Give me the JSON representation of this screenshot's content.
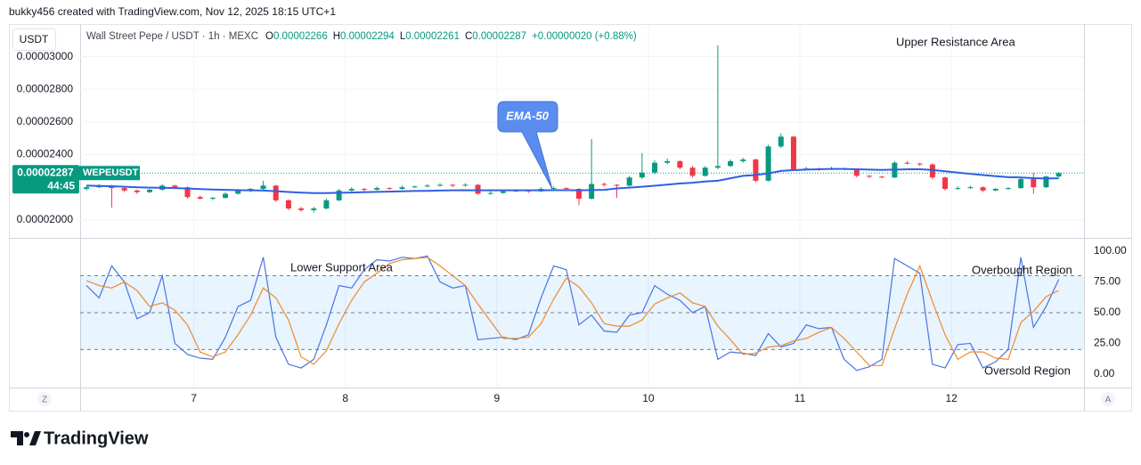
{
  "header": {
    "attribution": "bukky456 created with TradingView.com, Nov 12, 2025 18:15 UTC+1",
    "logo": "TradingView"
  },
  "controls": {
    "left": "Z",
    "right": "A"
  },
  "chart_data": [
    {
      "type": "candlestick",
      "title": "Wall Street Pepe / USDT · 1h · MEXC",
      "currency": "USDT",
      "symbol": "WEPEUSDT",
      "countdown": "44:45",
      "legend_labels": [
        "O",
        "H",
        "L",
        "C"
      ],
      "change": "+0.00000020 (+0.88%)",
      "up_color": "#089981",
      "down_color": "#f23645",
      "xlim": [
        0,
        159
      ],
      "xticks": [
        {
          "value": 18,
          "label": "7"
        },
        {
          "value": 42,
          "label": "8"
        },
        {
          "value": 66,
          "label": "9"
        },
        {
          "value": 90,
          "label": "10"
        },
        {
          "value": 114,
          "label": "11"
        },
        {
          "value": 138,
          "label": "12"
        }
      ],
      "ylim": [
        1.89e-05,
        3.2e-05
      ],
      "yticks": [
        {
          "value": 2e-05,
          "label": "0.00002000"
        },
        {
          "value": 2.4e-05,
          "label": "0.00002400"
        },
        {
          "value": 2.6e-05,
          "label": "0.00002600"
        },
        {
          "value": 2.8e-05,
          "label": "0.00002800"
        },
        {
          "value": 3e-05,
          "label": "0.00003000"
        }
      ],
      "grid": true,
      "x": [
        1,
        3,
        5,
        7,
        9,
        11,
        13,
        15,
        17,
        19,
        21,
        23,
        25,
        27,
        29,
        31,
        33,
        35,
        37,
        39,
        41,
        43,
        45,
        47,
        49,
        51,
        53,
        55,
        57,
        59,
        61,
        63,
        65,
        67,
        69,
        71,
        73,
        75,
        77,
        79,
        81,
        83,
        85,
        87,
        89,
        91,
        93,
        95,
        97,
        99,
        101,
        103,
        105,
        107,
        109,
        111,
        113,
        115,
        117,
        119,
        121,
        123,
        125,
        127,
        129,
        131,
        133,
        135,
        137,
        139,
        141,
        143,
        145,
        147,
        149,
        151,
        153,
        155
      ],
      "open": [
        2.19e-05,
        2.2e-05,
        2.21e-05,
        2.195e-05,
        2.18e-05,
        2.17e-05,
        2.185e-05,
        2.21e-05,
        2.2e-05,
        2.14e-05,
        2.13e-05,
        2.135e-05,
        2.16e-05,
        2.18e-05,
        2.19e-05,
        2.21e-05,
        2.12e-05,
        2.07e-05,
        2.06e-05,
        2.07e-05,
        2.12e-05,
        2.18e-05,
        2.19e-05,
        2.185e-05,
        2.195e-05,
        2.19e-05,
        2.2e-05,
        2.205e-05,
        2.21e-05,
        2.215e-05,
        2.21e-05,
        2.215e-05,
        2.16e-05,
        2.165e-05,
        2.175e-05,
        2.18e-05,
        2.175e-05,
        2.19e-05,
        2.195e-05,
        2.19e-05,
        2.13e-05,
        2.22e-05,
        2.215e-05,
        2.21e-05,
        2.26e-05,
        2.29e-05,
        2.35e-05,
        2.36e-05,
        2.32e-05,
        2.27e-05,
        2.32e-05,
        2.33e-05,
        2.36e-05,
        2.37e-05,
        2.24e-05,
        2.45e-05,
        2.51e-05,
        2.31e-05,
        2.315e-05,
        2.31e-05,
        2.315e-05,
        2.31e-05,
        2.27e-05,
        2.265e-05,
        2.26e-05,
        2.35e-05,
        2.345e-05,
        2.34e-05,
        2.26e-05,
        2.19e-05,
        2.195e-05,
        2.2e-05,
        2.18e-05,
        2.19e-05,
        2.195e-05,
        2.25e-05,
        2.2e-05,
        2.266e-05
      ],
      "high": [
        2.21e-05,
        2.22e-05,
        2.215e-05,
        2.2e-05,
        2.185e-05,
        2.19e-05,
        2.22e-05,
        2.215e-05,
        2.205e-05,
        2.15e-05,
        2.14e-05,
        2.17e-05,
        2.19e-05,
        2.195e-05,
        2.24e-05,
        2.215e-05,
        2.125e-05,
        2.08e-05,
        2.08e-05,
        2.13e-05,
        2.19e-05,
        2.2e-05,
        2.195e-05,
        2.205e-05,
        2.2e-05,
        2.21e-05,
        2.21e-05,
        2.22e-05,
        2.225e-05,
        2.22e-05,
        2.225e-05,
        2.22e-05,
        2.175e-05,
        2.18e-05,
        2.185e-05,
        2.185e-05,
        2.2e-05,
        2.205e-05,
        2.2e-05,
        2.195e-05,
        2.495e-05,
        2.23e-05,
        2.22e-05,
        2.27e-05,
        2.41e-05,
        2.365e-05,
        2.375e-05,
        2.365e-05,
        2.33e-05,
        2.33e-05,
        3.07e-05,
        2.37e-05,
        2.38e-05,
        2.375e-05,
        2.46e-05,
        2.53e-05,
        2.515e-05,
        2.325e-05,
        2.32e-05,
        2.325e-05,
        2.32e-05,
        2.315e-05,
        2.275e-05,
        2.27e-05,
        2.36e-05,
        2.36e-05,
        2.35e-05,
        2.345e-05,
        2.265e-05,
        2.205e-05,
        2.21e-05,
        2.205e-05,
        2.195e-05,
        2.2e-05,
        2.26e-05,
        2.29e-05,
        2.27e-05,
        2.294e-05
      ],
      "low": [
        2.18e-05,
        2.195e-05,
        2.075e-05,
        2.17e-05,
        2.16e-05,
        2.165e-05,
        2.18e-05,
        2.19e-05,
        2.13e-05,
        2.125e-05,
        2.12e-05,
        2.13e-05,
        2.155e-05,
        2.17e-05,
        2.185e-05,
        2.11e-05,
        2.06e-05,
        2.05e-05,
        2.045e-05,
        2.065e-05,
        2.115e-05,
        2.175e-05,
        2.175e-05,
        2.18e-05,
        2.185e-05,
        2.185e-05,
        2.195e-05,
        2.2e-05,
        2.205e-05,
        2.2e-05,
        2.205e-05,
        2.155e-05,
        2.155e-05,
        2.16e-05,
        2.17e-05,
        2.165e-05,
        2.17e-05,
        2.185e-05,
        2.185e-05,
        2.09e-05,
        2.125e-05,
        2.205e-05,
        2.135e-05,
        2.205e-05,
        2.25e-05,
        2.28e-05,
        2.34e-05,
        2.31e-05,
        2.26e-05,
        2.265e-05,
        2.31e-05,
        2.325e-05,
        2.35e-05,
        2.23e-05,
        2.235e-05,
        2.44e-05,
        2.3e-05,
        2.305e-05,
        2.3e-05,
        2.305e-05,
        2.305e-05,
        2.26e-05,
        2.255e-05,
        2.255e-05,
        2.255e-05,
        2.34e-05,
        2.33e-05,
        2.25e-05,
        2.18e-05,
        2.185e-05,
        2.19e-05,
        2.17e-05,
        2.175e-05,
        2.185e-05,
        2.19e-05,
        2.16e-05,
        2.195e-05,
        2.261e-05
      ],
      "close": [
        2.2e-05,
        2.21e-05,
        2.195e-05,
        2.18e-05,
        2.17e-05,
        2.185e-05,
        2.21e-05,
        2.2e-05,
        2.14e-05,
        2.13e-05,
        2.135e-05,
        2.16e-05,
        2.18e-05,
        2.19e-05,
        2.21e-05,
        2.12e-05,
        2.07e-05,
        2.06e-05,
        2.07e-05,
        2.12e-05,
        2.18e-05,
        2.19e-05,
        2.185e-05,
        2.195e-05,
        2.19e-05,
        2.2e-05,
        2.205e-05,
        2.21e-05,
        2.215e-05,
        2.21e-05,
        2.215e-05,
        2.16e-05,
        2.165e-05,
        2.175e-05,
        2.18e-05,
        2.175e-05,
        2.19e-05,
        2.195e-05,
        2.19e-05,
        2.13e-05,
        2.22e-05,
        2.215e-05,
        2.21e-05,
        2.26e-05,
        2.29e-05,
        2.35e-05,
        2.36e-05,
        2.32e-05,
        2.27e-05,
        2.32e-05,
        2.33e-05,
        2.36e-05,
        2.37e-05,
        2.24e-05,
        2.45e-05,
        2.51e-05,
        2.31e-05,
        2.315e-05,
        2.31e-05,
        2.315e-05,
        2.31e-05,
        2.27e-05,
        2.265e-05,
        2.26e-05,
        2.35e-05,
        2.345e-05,
        2.34e-05,
        2.26e-05,
        2.19e-05,
        2.195e-05,
        2.2e-05,
        2.18e-05,
        2.19e-05,
        2.195e-05,
        2.25e-05,
        2.2e-05,
        2.266e-05,
        2.287e-05
      ],
      "ema": {
        "color": "#2f5fe3",
        "values": [
          2.21e-05,
          2.208e-05,
          2.206e-05,
          2.203e-05,
          2.2e-05,
          2.198e-05,
          2.197e-05,
          2.195e-05,
          2.192e-05,
          2.189e-05,
          2.186e-05,
          2.184e-05,
          2.182e-05,
          2.181e-05,
          2.18e-05,
          2.176e-05,
          2.171e-05,
          2.167e-05,
          2.164e-05,
          2.164e-05,
          2.166e-05,
          2.168e-05,
          2.17e-05,
          2.172e-05,
          2.173e-05,
          2.175e-05,
          2.177e-05,
          2.178e-05,
          2.18e-05,
          2.181e-05,
          2.182e-05,
          2.181e-05,
          2.181e-05,
          2.181e-05,
          2.181e-05,
          2.181e-05,
          2.181e-05,
          2.182e-05,
          2.182e-05,
          2.181e-05,
          2.183e-05,
          2.184e-05,
          2.193e-05,
          2.198e-05,
          2.203e-05,
          2.209e-05,
          2.216e-05,
          2.223e-05,
          2.228e-05,
          2.235e-05,
          2.24e-05,
          2.255e-05,
          2.27e-05,
          2.275e-05,
          2.285e-05,
          2.3e-05,
          2.305e-05,
          2.308e-05,
          2.31e-05,
          2.312e-05,
          2.312e-05,
          2.31e-05,
          2.308e-05,
          2.306e-05,
          2.308e-05,
          2.31e-05,
          2.31e-05,
          2.306e-05,
          2.298e-05,
          2.29e-05,
          2.282e-05,
          2.275e-05,
          2.268e-05,
          2.262e-05,
          2.26e-05,
          2.256e-05,
          2.254e-05,
          2.255e-05
        ]
      },
      "annotations": [
        "Upper Resistance Area",
        "EMA-50"
      ]
    },
    {
      "type": "line",
      "ylim": [
        -10.9,
        110.1
      ],
      "yticks": [
        {
          "value": 0,
          "label": "0.00"
        },
        {
          "value": 25,
          "label": "25.00"
        },
        {
          "value": 50,
          "label": "50.00"
        },
        {
          "value": 75,
          "label": "75.00"
        },
        {
          "value": 100,
          "label": "100.00"
        }
      ],
      "bands": [
        20,
        50,
        80
      ],
      "band_color": "#2196f3",
      "series": [
        {
          "color": "#4a74e2",
          "values": [
            72,
            62,
            88,
            75,
            45,
            50,
            80,
            25,
            16,
            13,
            12,
            30,
            55,
            60,
            95,
            30,
            8,
            5,
            12,
            40,
            72,
            70,
            85,
            93,
            92,
            95,
            94,
            96,
            75,
            70,
            72,
            28,
            29,
            30,
            28,
            32,
            62,
            88,
            85,
            40,
            48,
            35,
            34,
            48,
            50,
            72,
            65,
            60,
            50,
            55,
            12,
            18,
            17,
            15,
            33,
            22,
            25,
            40,
            37,
            38,
            12,
            3,
            6,
            12,
            94,
            88,
            82,
            8,
            5,
            24,
            25,
            5,
            10,
            20,
            95,
            38,
            55,
            77
          ]
        },
        {
          "color": "#f08a2e",
          "values": [
            76,
            72,
            70,
            75,
            68,
            55,
            58,
            52,
            40,
            18,
            14,
            18,
            32,
            48,
            70,
            62,
            44,
            14,
            8,
            19,
            41,
            60,
            75,
            82,
            90,
            93,
            94,
            95,
            88,
            80,
            72,
            57,
            43,
            29,
            29,
            30,
            41,
            61,
            78,
            71,
            58,
            41,
            39,
            39,
            44,
            57,
            62,
            66,
            58,
            55,
            39,
            28,
            16,
            17,
            22,
            23,
            27,
            29,
            34,
            38,
            29,
            18,
            7,
            7,
            37,
            65,
            88,
            59,
            32,
            12,
            18,
            18,
            13,
            12,
            42,
            51,
            63,
            68
          ]
        }
      ],
      "annotations": [
        "Lower Support Area",
        "Overbought Region",
        "Oversold Region"
      ]
    }
  ]
}
